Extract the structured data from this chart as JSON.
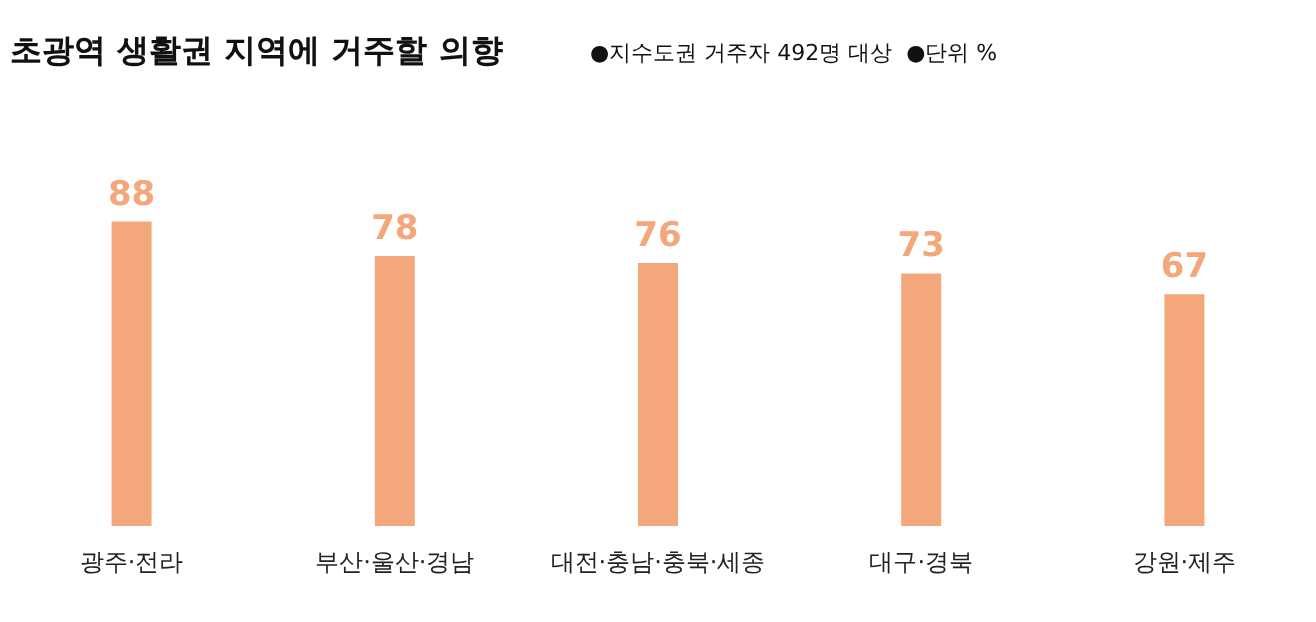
{
  "chart_data": {
    "type": "bar",
    "title": "초광역 생활권 지역에 거주할 의향",
    "subtitle": "●지수도권 거주자 492명 대상  ●단위 %",
    "categories": [
      "광주·전라",
      "부산·울산·경남",
      "대전·충남·충북·세종",
      "대구·경북",
      "강원·제주"
    ],
    "values": [
      88,
      78,
      76,
      73,
      67
    ],
    "color": "#f4a77a",
    "data_labels": true
  }
}
